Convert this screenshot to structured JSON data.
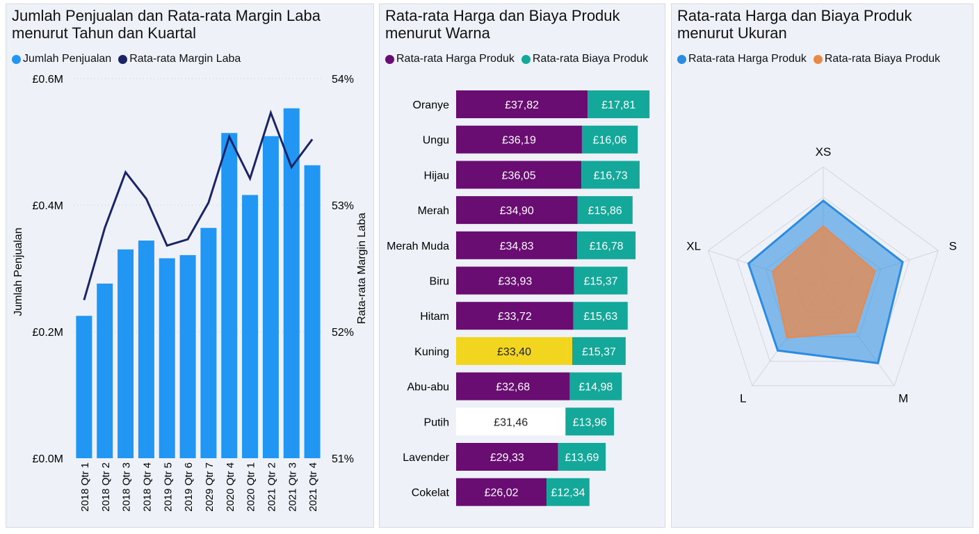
{
  "chart_data": [
    {
      "type": "bar+line",
      "title": "Jumlah Penjualan dan Rata-rata Margin Laba menurut Tahun dan Kuartal",
      "title_lines": [
        "Jumlah Penjualan dan Rata-rata Margin Laba",
        "menurut Tahun dan Kuartal"
      ],
      "legend": [
        "Jumlah Penjualan",
        "Rata-rata Margin Laba"
      ],
      "legend_position": "top-left",
      "categories": [
        "2018 Qtr 1",
        "2018 Qtr 2",
        "2018 Qtr 3",
        "2018 Qtr 4",
        "2019 Qtr 5",
        "2019 Qtr 6",
        "2029 Qtr 7",
        "2020 Qtr 4",
        "2020 Qtr 1",
        "2021 Qtr 2",
        "2021 Qtr 3",
        "2021 Qtr 4"
      ],
      "ylabel": "Jumlah Penjualan",
      "y2label": "Rata-rata Margin Laba",
      "ylim": [
        0,
        0.6
      ],
      "y_ticks": [
        "£0.0M",
        "£0.2M",
        "£0.4M",
        "£0.6M"
      ],
      "y2lim": [
        51,
        54
      ],
      "y2_ticks": [
        "51%",
        "52%",
        "53%",
        "54%"
      ],
      "grid": true,
      "series": [
        {
          "name": "Jumlah Penjualan",
          "type": "bar",
          "color": "#2196f3",
          "unit": "£M",
          "values": [
            0.225,
            0.276,
            0.33,
            0.344,
            0.316,
            0.321,
            0.364,
            0.514,
            0.416,
            0.509,
            0.553,
            0.463
          ]
        },
        {
          "name": "Rata-rata Margin Laba",
          "type": "line",
          "color": "#1a2466",
          "unit": "%",
          "values": [
            52.25,
            52.82,
            53.26,
            53.05,
            52.68,
            52.73,
            53.02,
            53.54,
            53.21,
            53.73,
            53.3,
            53.52
          ]
        }
      ]
    },
    {
      "type": "stacked-bar-horizontal",
      "title": "Rata-rata Harga dan Biaya Produk menurut Warna",
      "title_lines": [
        "Rata-rata Harga dan Biaya Produk",
        "menurut Warna"
      ],
      "legend": [
        "Rata-rata Harga Produk",
        "Rata-rata Biaya Produk"
      ],
      "legend_position": "top-left",
      "categories": [
        "Oranye",
        "Ungu",
        "Hijau",
        "Merah",
        "Merah Muda",
        "Biru",
        "Hitam",
        "Kuning",
        "Abu-abu",
        "Putih",
        "Lavender",
        "Cokelat"
      ],
      "series": [
        {
          "name": "Rata-rata Harga Produk",
          "color": "#6a0d72",
          "values": [
            37.82,
            36.19,
            36.05,
            34.9,
            34.83,
            33.93,
            33.72,
            33.4,
            32.68,
            31.46,
            29.33,
            26.02
          ],
          "labels": [
            "£37,82",
            "£36,19",
            "£36,05",
            "£34,90",
            "£34,83",
            "£33,93",
            "£33,72",
            "£33,40",
            "£32,68",
            "£31,46",
            "£29,33",
            "£26,02"
          ],
          "highlight": {
            "Kuning": "#f2d51e",
            "Putih": "#ffffff"
          }
        },
        {
          "name": "Rata-rata Biaya Produk",
          "color": "#13a89a",
          "values": [
            17.81,
            16.06,
            16.73,
            15.86,
            16.78,
            15.37,
            15.63,
            15.37,
            14.98,
            13.96,
            13.69,
            12.34
          ],
          "labels": [
            "£17,81",
            "£16,06",
            "£16,73",
            "£15,86",
            "£16,78",
            "£15,37",
            "£15,63",
            "£15,37",
            "£14,98",
            "£13,96",
            "£13,69",
            "£12,34"
          ]
        }
      ]
    },
    {
      "type": "radar",
      "title": "Rata-rata Harga dan Biaya Produk menurut Ukuran",
      "title_lines": [
        "Rata-rata Harga dan Biaya Produk",
        "menurut Ukuran"
      ],
      "legend": [
        "Rata-rata Harga Produk",
        "Rata-rata Biaya Produk"
      ],
      "legend_position": "top-left",
      "categories": [
        "XS",
        "S",
        "M",
        "L",
        "XL"
      ],
      "rlim": [
        0,
        1
      ],
      "series": [
        {
          "name": "Rata-rata Harga Produk",
          "color": "#2a8be0",
          "values": [
            0.72,
            0.69,
            0.77,
            0.64,
            0.65
          ]
        },
        {
          "name": "Rata-rata Biaya Produk",
          "color": "#e8894a",
          "values": [
            0.51,
            0.45,
            0.45,
            0.51,
            0.44
          ]
        }
      ]
    }
  ]
}
